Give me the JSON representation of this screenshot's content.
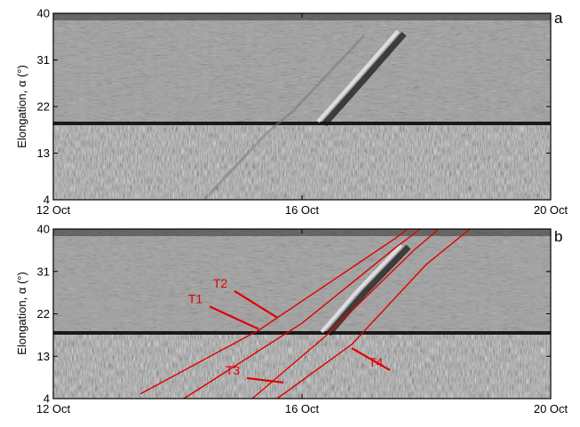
{
  "figure": {
    "background": "#ffffff",
    "track_color": "#e00000",
    "frame_color": "#000000"
  },
  "chart_data": [
    {
      "type": "heatmap",
      "panel_label": "a",
      "ylabel": "Elongation, α (°)",
      "ylim": [
        4,
        40
      ],
      "yticks": [
        "4",
        "13",
        "22",
        "31",
        "40"
      ],
      "xlim": [
        "12 Oct",
        "20 Oct"
      ],
      "xticks": [
        "12 Oct",
        "16 Oct",
        "20 Oct"
      ],
      "colormap": "grayscale",
      "tracks": []
    },
    {
      "type": "heatmap",
      "panel_label": "b",
      "ylabel": "Elongation, α (°)",
      "ylim": [
        4,
        40
      ],
      "yticks": [
        "4",
        "13",
        "22",
        "31",
        "40"
      ],
      "xlim": [
        "12 Oct",
        "20 Oct"
      ],
      "xticks": [
        "12 Oct",
        "16 Oct",
        "20 Oct"
      ],
      "colormap": "grayscale",
      "tracks": [
        {
          "name": "T1",
          "points": [
            [
              13.4,
              5.0
            ],
            [
              15.3,
              18.5
            ],
            [
              17.5,
              38.0
            ],
            [
              17.7,
              40.0
            ]
          ]
        },
        {
          "name": "T2",
          "points": [
            [
              14.1,
              4.0
            ],
            [
              16.0,
              20.0
            ],
            [
              17.5,
              36.0
            ],
            [
              17.9,
              40.0
            ]
          ]
        },
        {
          "name": "T3",
          "points": [
            [
              15.2,
              4.0
            ],
            [
              16.4,
              17.5
            ],
            [
              17.8,
              35.5
            ],
            [
              18.2,
              40.0
            ]
          ]
        },
        {
          "name": "T4",
          "points": [
            [
              15.6,
              4.0
            ],
            [
              16.8,
              15.5
            ],
            [
              18.0,
              32.5
            ],
            [
              18.7,
              40.0
            ]
          ]
        }
      ],
      "track_labels": [
        {
          "name": "T1",
          "x": 14.4,
          "y": 24.3,
          "arrow_to": [
            15.3,
            18.8
          ]
        },
        {
          "name": "T2",
          "x": 14.8,
          "y": 27.6,
          "arrow_to": [
            15.6,
            21.2
          ]
        },
        {
          "name": "T3",
          "x": 15.0,
          "y": 9.1,
          "arrow_to": [
            15.7,
            7.4
          ]
        },
        {
          "name": "T4",
          "x": 17.3,
          "y": 10.8,
          "arrow_to": [
            16.8,
            14.7
          ]
        }
      ]
    }
  ]
}
